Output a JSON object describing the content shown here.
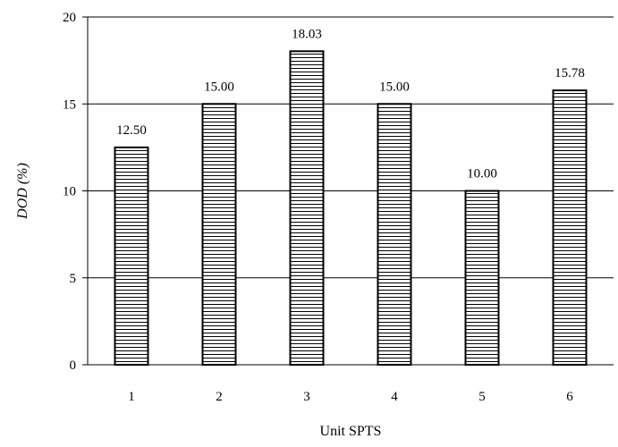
{
  "chart_data": {
    "type": "bar",
    "categories": [
      "1",
      "2",
      "3",
      "4",
      "5",
      "6"
    ],
    "values": [
      12.5,
      15.0,
      18.03,
      15.0,
      10.0,
      15.78
    ],
    "data_labels": [
      "12.50",
      "15.00",
      "18.03",
      "15.00",
      "10.00",
      "15.78"
    ],
    "title": "",
    "xlabel": "Unit SPTS",
    "ylabel": "DOD (%)",
    "ylim": [
      0,
      20
    ],
    "yticks": [
      0,
      5,
      10,
      15,
      20
    ],
    "ytick_labels": [
      "0",
      "5",
      "10",
      "15",
      "20"
    ],
    "grid": "horizontal",
    "legend": "none",
    "bar_fill": "horizontal-hatch",
    "colors": {
      "bar_stroke": "#000000",
      "hatch": "#000000",
      "grid": "#000000",
      "background": "#ffffff"
    }
  }
}
